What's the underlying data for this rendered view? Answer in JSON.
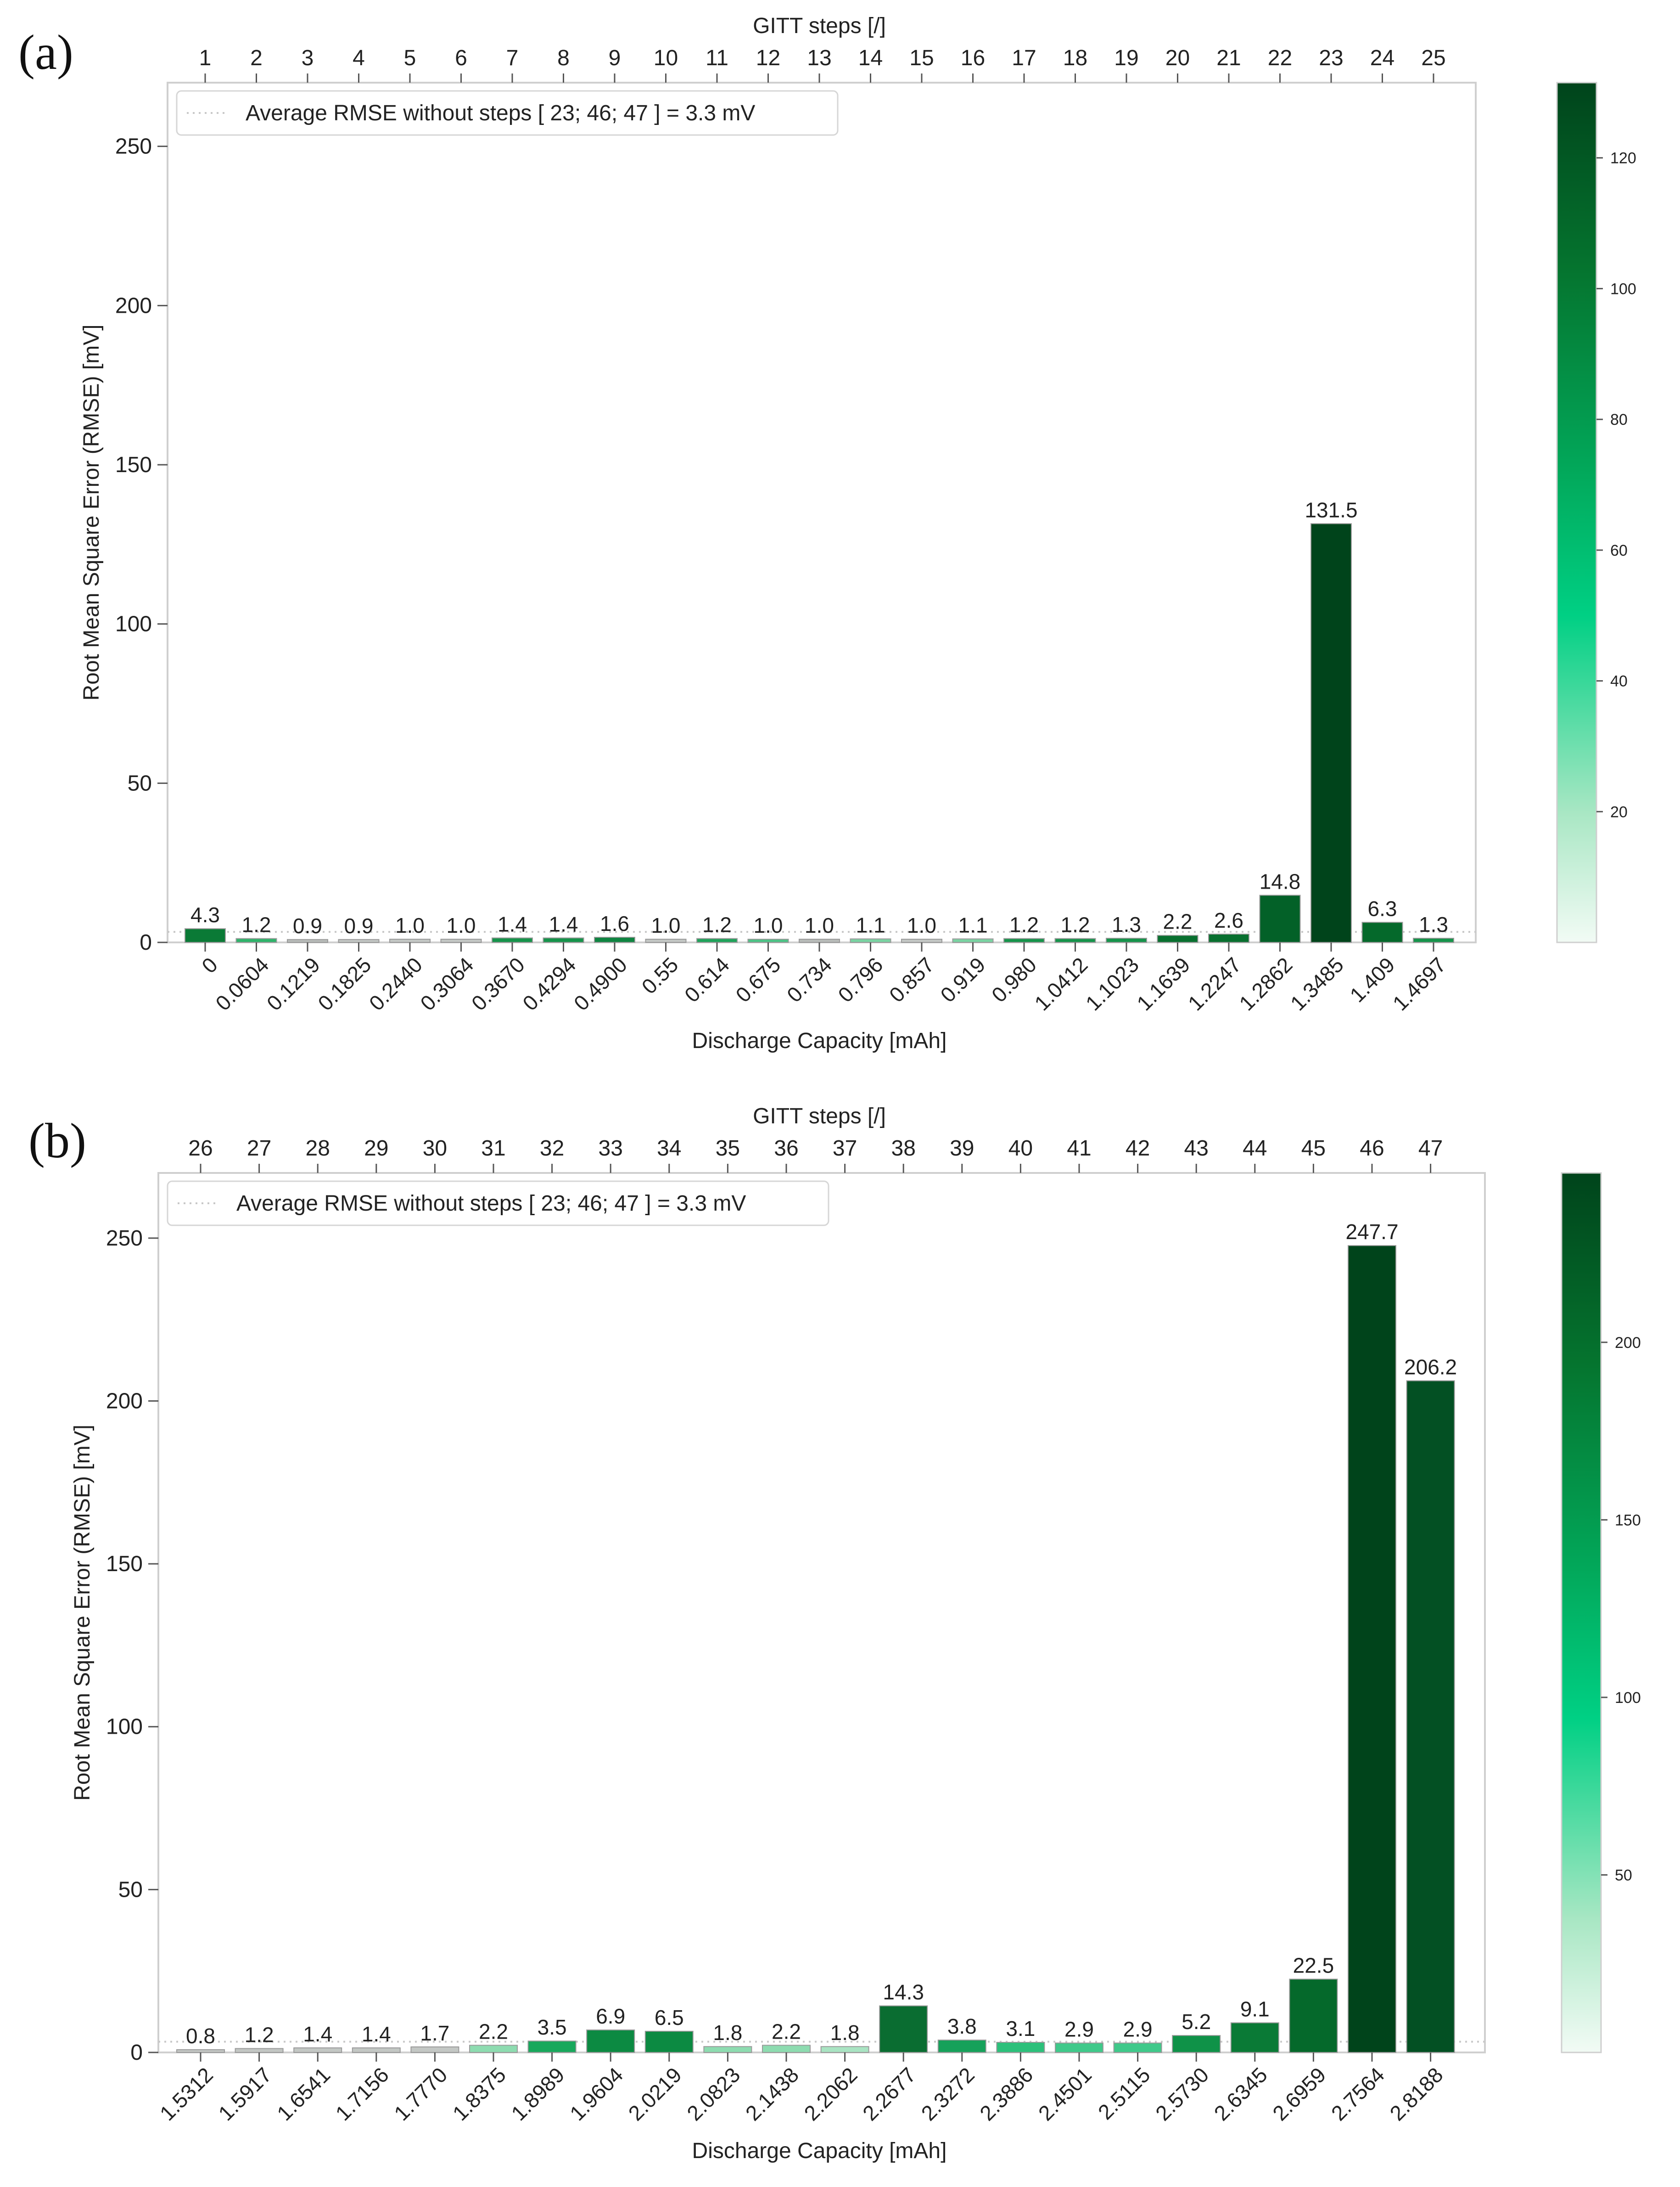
{
  "figure": {
    "colorbar_colors": [
      "#f2fbf5",
      "#a9e7c4",
      "#00d084",
      "#02a85a",
      "#05752f",
      "#00441b"
    ]
  },
  "chart_data": [
    {
      "type": "bar",
      "panel_label": "(a)",
      "top_axis_label": "GITT steps [/]",
      "xlabel": "Discharge Capacity [mAh]",
      "ylabel": "Root Mean Square Error (RMSE) [mV]",
      "ylim": [
        0,
        270
      ],
      "yticks": [
        0,
        50,
        100,
        150,
        200,
        250
      ],
      "grid": false,
      "legend": {
        "label": "Average RMSE without steps [ 23; 46; 47 ] = 3.3 mV",
        "position": "top-left"
      },
      "average_line": 3.3,
      "steps": [
        "1",
        "2",
        "3",
        "4",
        "5",
        "6",
        "7",
        "8",
        "9",
        "10",
        "11",
        "12",
        "13",
        "14",
        "15",
        "16",
        "17",
        "18",
        "19",
        "20",
        "21",
        "22",
        "23",
        "24",
        "25"
      ],
      "categories": [
        "0",
        "0.0604",
        "0.1219",
        "0.1825",
        "0.2440",
        "0.3064",
        "0.3670",
        "0.4294",
        "0.4900",
        "0.55",
        "0.614",
        "0.675",
        "0.734",
        "0.796",
        "0.857",
        "0.919",
        "0.980",
        "1.0412",
        "1.1023",
        "1.1639",
        "1.2247",
        "1.2862",
        "1.3485",
        "1.409",
        "1.4697"
      ],
      "values": [
        4.3,
        1.2,
        0.9,
        0.9,
        1.0,
        1.0,
        1.4,
        1.4,
        1.6,
        1.0,
        1.2,
        1.0,
        1.0,
        1.1,
        1.0,
        1.1,
        1.2,
        1.2,
        1.3,
        2.2,
        2.6,
        14.8,
        131.5,
        6.3,
        1.3
      ],
      "labels": [
        "4.3",
        "1.2",
        "0.9",
        "0.9",
        "1.0",
        "1.0",
        "1.4",
        "1.4",
        "1.6",
        "1.0",
        "1.2",
        "1.0",
        "1.0",
        "1.1",
        "1.0",
        "1.1",
        "1.2",
        "1.2",
        "1.3",
        "2.2",
        "2.6",
        "14.8",
        "131.5",
        "6.3",
        "1.3"
      ],
      "bar_colors": [
        "#0a7a36",
        "#2fb36a",
        "#b8bcb9",
        "#c3c7c4",
        "#c3c7c4",
        "#c3c7c4",
        "#15934a",
        "#15934a",
        "#0e8440",
        "#c3c7c4",
        "#1fa35a",
        "#4cc285",
        "#b8bcb9",
        "#7ad3a2",
        "#c3c7c4",
        "#7ad3a2",
        "#15934a",
        "#15934a",
        "#15934a",
        "#08702f",
        "#08702f",
        "#036128",
        "#00441b",
        "#05692b",
        "#15934a"
      ],
      "colorbar": {
        "ticks": [
          20,
          40,
          60,
          80,
          100,
          120
        ],
        "min": 0,
        "max": 131.5
      }
    },
    {
      "type": "bar",
      "panel_label": "(b)",
      "top_axis_label": "GITT steps [/]",
      "xlabel": "Discharge Capacity [mAh]",
      "ylabel": "Root Mean Square Error (RMSE) [mV]",
      "ylim": [
        0,
        270
      ],
      "yticks": [
        0,
        50,
        100,
        150,
        200,
        250
      ],
      "grid": false,
      "legend": {
        "label": "Average RMSE without steps [ 23; 46; 47 ] = 3.3 mV",
        "position": "top-left"
      },
      "average_line": 3.3,
      "steps": [
        "26",
        "27",
        "28",
        "29",
        "30",
        "31",
        "32",
        "33",
        "34",
        "35",
        "36",
        "37",
        "38",
        "39",
        "40",
        "41",
        "42",
        "43",
        "44",
        "45",
        "46",
        "47"
      ],
      "categories": [
        "1.5312",
        "1.5917",
        "1.6541",
        "1.7156",
        "1.7770",
        "1.8375",
        "1.8989",
        "1.9604",
        "2.0219",
        "2.0823",
        "2.1438",
        "2.2062",
        "2.2677",
        "2.3272",
        "2.3886",
        "2.4501",
        "2.5115",
        "2.5730",
        "2.6345",
        "2.6959",
        "2.7564",
        "2.8188"
      ],
      "values": [
        0.8,
        1.2,
        1.4,
        1.4,
        1.7,
        2.2,
        3.5,
        6.9,
        6.5,
        1.8,
        2.2,
        1.8,
        14.3,
        3.8,
        3.1,
        2.9,
        2.9,
        5.2,
        9.1,
        22.5,
        247.7,
        206.2
      ],
      "labels": [
        "0.8",
        "1.2",
        "1.4",
        "1.4",
        "1.7",
        "2.2",
        "3.5",
        "6.9",
        "6.5",
        "1.8",
        "2.2",
        "1.8",
        "14.3",
        "3.8",
        "3.1",
        "2.9",
        "2.9",
        "5.2",
        "9.1",
        "22.5",
        "247.7",
        "206.2"
      ],
      "bar_colors": [
        "#c3c7c4",
        "#c3c7c4",
        "#c3c7c4",
        "#c3c7c4",
        "#c3c7c4",
        "#8ddcb0",
        "#18a85c",
        "#0c8a42",
        "#0c8a42",
        "#8ddcb0",
        "#8ddcb0",
        "#a9e4c2",
        "#0a6d31",
        "#16a15a",
        "#2cc07a",
        "#3fc98a",
        "#3fc98a",
        "#0f9248",
        "#0a7a36",
        "#05692b",
        "#00441b",
        "#035023"
      ],
      "colorbar": {
        "ticks": [
          50,
          100,
          150,
          200
        ],
        "min": 0,
        "max": 247.7
      }
    }
  ]
}
